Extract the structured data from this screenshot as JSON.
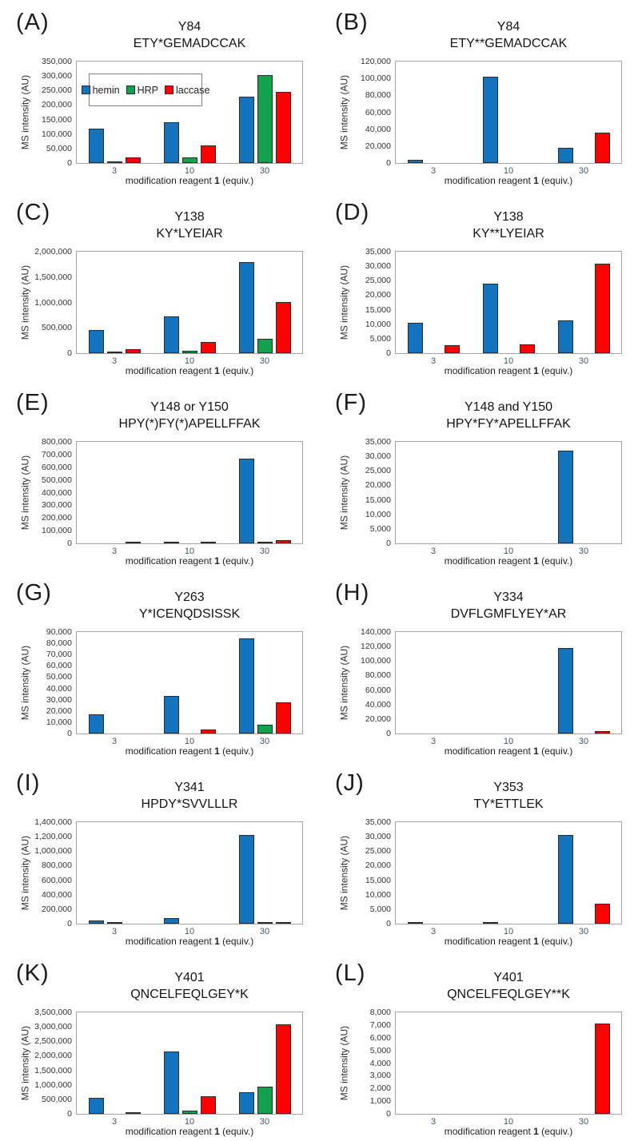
{
  "figure": {
    "xlabel_pre": "modification reagent ",
    "xlabel_bold": "1",
    "xlabel_post": " (equiv.)",
    "legend": [
      "hemin",
      "HRP",
      "laccase"
    ],
    "colors": {
      "hemin": "#1473bd",
      "HRP": "#12a24e",
      "laccase": "#ff0000",
      "bar_outline": "#2b2b2b",
      "plot_border": "#a3a3a3"
    }
  },
  "chart_data": [
    {
      "type": "bar",
      "panel": "(A)",
      "title": "Y84",
      "subtitle": "ETY*GEMADCCAK",
      "ylabel": "MS intensity (AU)",
      "xlabel": "modification reagent 1 (equiv.)",
      "categories": [
        "3",
        "10",
        "30"
      ],
      "ylim": [
        0,
        350000
      ],
      "ytick_step": 50000,
      "yticks": [
        "0",
        "50,000",
        "100,000",
        "150,000",
        "200,000",
        "250,000",
        "300,000",
        "350,000"
      ],
      "legend_visible": true,
      "legend_position": "upper-left",
      "grid": false,
      "series": [
        {
          "name": "hemin",
          "values": [
            118000,
            141000,
            230000
          ]
        },
        {
          "name": "HRP",
          "values": [
            5000,
            18000,
            303000
          ]
        },
        {
          "name": "laccase",
          "values": [
            20000,
            62000,
            246000
          ]
        }
      ]
    },
    {
      "type": "bar",
      "panel": "(B)",
      "title": "Y84",
      "subtitle": "ETY**GEMADCCAK",
      "ylabel": "MS intensity (AU)",
      "xlabel": "modification reagent 1 (equiv.)",
      "categories": [
        "3",
        "10",
        "30"
      ],
      "ylim": [
        0,
        120000
      ],
      "ytick_step": 20000,
      "yticks": [
        "0",
        "20,000",
        "40,000",
        "60,000",
        "80,000",
        "100,000",
        "120,000"
      ],
      "legend_visible": false,
      "grid": false,
      "series": [
        {
          "name": "hemin",
          "values": [
            4000,
            102000,
            18000
          ]
        },
        {
          "name": "HRP",
          "values": [
            0,
            0,
            0
          ]
        },
        {
          "name": "laccase",
          "values": [
            0,
            0,
            36000
          ]
        }
      ]
    },
    {
      "type": "bar",
      "panel": "(C)",
      "title": "Y138",
      "subtitle": "KY*LYEIAR",
      "ylabel": "MS intensity (AU)",
      "xlabel": "modification reagent 1 (equiv.)",
      "categories": [
        "3",
        "10",
        "30"
      ],
      "ylim": [
        0,
        2000000
      ],
      "ytick_step": 500000,
      "yticks": [
        "0",
        "500,000",
        "1,000,000",
        "1,500,000",
        "2,000,000"
      ],
      "legend_visible": false,
      "grid": false,
      "series": [
        {
          "name": "hemin",
          "values": [
            450000,
            730000,
            1800000
          ]
        },
        {
          "name": "HRP",
          "values": [
            15000,
            50000,
            280000
          ]
        },
        {
          "name": "laccase",
          "values": [
            80000,
            215000,
            1000000
          ]
        }
      ]
    },
    {
      "type": "bar",
      "panel": "(D)",
      "title": "Y138",
      "subtitle": "KY**LYEIAR",
      "ylabel": "MS intensity (AU)",
      "xlabel": "modification reagent 1 (equiv.)",
      "categories": [
        "3",
        "10",
        "30"
      ],
      "ylim": [
        0,
        35000
      ],
      "ytick_step": 5000,
      "yticks": [
        "0",
        "5,000",
        "10,000",
        "15,000",
        "20,000",
        "25,000",
        "30,000",
        "35,000"
      ],
      "legend_visible": false,
      "grid": false,
      "series": [
        {
          "name": "hemin",
          "values": [
            10500,
            24000,
            11300
          ]
        },
        {
          "name": "HRP",
          "values": [
            0,
            0,
            0
          ]
        },
        {
          "name": "laccase",
          "values": [
            2800,
            3100,
            31000
          ]
        }
      ]
    },
    {
      "type": "bar",
      "panel": "(E)",
      "title": "Y148 or Y150",
      "subtitle": "HPY(*)FY(*)APELLFFAK",
      "ylabel": "MS intensity (AU)",
      "xlabel": "modification reagent 1 (equiv.)",
      "categories": [
        "3",
        "10",
        "30"
      ],
      "ylim": [
        0,
        800000
      ],
      "ytick_step": 100000,
      "yticks": [
        "0",
        "100,000",
        "200,000",
        "300,000",
        "400,000",
        "500,000",
        "600,000",
        "700,000",
        "800,000"
      ],
      "legend_visible": false,
      "grid": false,
      "series": [
        {
          "name": "hemin",
          "values": [
            0,
            5000,
            670000
          ]
        },
        {
          "name": "HRP",
          "values": [
            0,
            0,
            6000
          ]
        },
        {
          "name": "laccase",
          "values": [
            5000,
            5000,
            25000
          ]
        }
      ]
    },
    {
      "type": "bar",
      "panel": "(F)",
      "title": "Y148 and Y150",
      "subtitle": "HPY*FY*APELLFFAK",
      "ylabel": "MS intensity (AU)",
      "xlabel": "modification reagent 1 (equiv.)",
      "categories": [
        "3",
        "10",
        "30"
      ],
      "ylim": [
        0,
        35000
      ],
      "ytick_step": 5000,
      "yticks": [
        "0",
        "5,000",
        "10,000",
        "15,000",
        "20,000",
        "25,000",
        "30,000",
        "35,000"
      ],
      "legend_visible": false,
      "grid": false,
      "series": [
        {
          "name": "hemin",
          "values": [
            0,
            0,
            32000
          ]
        },
        {
          "name": "HRP",
          "values": [
            0,
            0,
            0
          ]
        },
        {
          "name": "laccase",
          "values": [
            0,
            0,
            0
          ]
        }
      ]
    },
    {
      "type": "bar",
      "panel": "(G)",
      "title": "Y263",
      "subtitle": "Y*ICENQDSISSK",
      "ylabel": "MS intensity (AU)",
      "xlabel": "modification reagent 1 (equiv.)",
      "categories": [
        "3",
        "10",
        "30"
      ],
      "ylim": [
        0,
        90000
      ],
      "ytick_step": 10000,
      "yticks": [
        "0",
        "10,000",
        "20,000",
        "30,000",
        "40,000",
        "50,000",
        "60,000",
        "70,000",
        "80,000",
        "90,000"
      ],
      "legend_visible": false,
      "grid": false,
      "series": [
        {
          "name": "hemin",
          "values": [
            17000,
            33000,
            84000
          ]
        },
        {
          "name": "HRP",
          "values": [
            0,
            0,
            8000
          ]
        },
        {
          "name": "laccase",
          "values": [
            0,
            3500,
            27500
          ]
        }
      ]
    },
    {
      "type": "bar",
      "panel": "(H)",
      "title": "Y334",
      "subtitle": "DVFLGMFLYEY*AR",
      "ylabel": "MS intensity (AU)",
      "xlabel": "modification reagent 1 (equiv.)",
      "categories": [
        "3",
        "10",
        "30"
      ],
      "ylim": [
        0,
        140000
      ],
      "ytick_step": 20000,
      "yticks": [
        "0",
        "20,000",
        "40,000",
        "60,000",
        "80,000",
        "100,000",
        "120,000",
        "140,000"
      ],
      "legend_visible": false,
      "grid": false,
      "series": [
        {
          "name": "hemin",
          "values": [
            0,
            0,
            118000
          ]
        },
        {
          "name": "HRP",
          "values": [
            0,
            0,
            0
          ]
        },
        {
          "name": "laccase",
          "values": [
            0,
            0,
            3000
          ]
        }
      ]
    },
    {
      "type": "bar",
      "panel": "(I)",
      "title": "Y341",
      "subtitle": "HPDY*SVVLLLR",
      "ylabel": "MS intensity (AU)",
      "xlabel": "modification reagent 1 (equiv.)",
      "categories": [
        "3",
        "10",
        "30"
      ],
      "ylim": [
        0,
        1400000
      ],
      "ytick_step": 200000,
      "yticks": [
        "0",
        "200,000",
        "400,000",
        "600,000",
        "800,000",
        "1,000,000",
        "1,200,000",
        "1,400,000"
      ],
      "legend_visible": false,
      "grid": false,
      "series": [
        {
          "name": "hemin",
          "values": [
            45000,
            80000,
            1220000
          ]
        },
        {
          "name": "HRP",
          "values": [
            8000,
            0,
            8000
          ]
        },
        {
          "name": "laccase",
          "values": [
            0,
            0,
            8000
          ]
        }
      ]
    },
    {
      "type": "bar",
      "panel": "(J)",
      "title": "Y353",
      "subtitle": "TY*ETTLEK",
      "ylabel": "MS intensity (AU)",
      "xlabel": "modification reagent 1 (equiv.)",
      "categories": [
        "3",
        "10",
        "30"
      ],
      "ylim": [
        0,
        35000
      ],
      "ytick_step": 5000,
      "yticks": [
        "0",
        "5,000",
        "10,000",
        "15,000",
        "20,000",
        "25,000",
        "30,000",
        "35,000"
      ],
      "legend_visible": false,
      "grid": false,
      "series": [
        {
          "name": "hemin",
          "values": [
            300,
            300,
            30500
          ]
        },
        {
          "name": "HRP",
          "values": [
            0,
            0,
            0
          ]
        },
        {
          "name": "laccase",
          "values": [
            0,
            0,
            7000
          ]
        }
      ]
    },
    {
      "type": "bar",
      "panel": "(K)",
      "title": "Y401",
      "subtitle": "QNCELFEQLGEY*K",
      "ylabel": "MS intensity (AU)",
      "xlabel": "modification reagent 1 (equiv.)",
      "categories": [
        "3",
        "10",
        "30"
      ],
      "ylim": [
        0,
        3500000
      ],
      "ytick_step": 500000,
      "yticks": [
        "0",
        "500,000",
        "1,000,000",
        "1,500,000",
        "2,000,000",
        "2,500,000",
        "3,000,000",
        "3,500,000"
      ],
      "legend_visible": false,
      "grid": false,
      "series": [
        {
          "name": "hemin",
          "values": [
            550000,
            2150000,
            750000
          ]
        },
        {
          "name": "HRP",
          "values": [
            0,
            110000,
            930000
          ]
        },
        {
          "name": "laccase",
          "values": [
            60000,
            600000,
            3100000
          ]
        }
      ]
    },
    {
      "type": "bar",
      "panel": "(L)",
      "title": "Y401",
      "subtitle": "QNCELFEQLGEY**K",
      "ylabel": "MS intensity (AU)",
      "xlabel": "modification reagent 1 (equiv.)",
      "categories": [
        "3",
        "10",
        "30"
      ],
      "ylim": [
        0,
        8000
      ],
      "ytick_step": 1000,
      "yticks": [
        "0",
        "1,000",
        "2,000",
        "3,000",
        "4,000",
        "5,000",
        "6,000",
        "7,000",
        "8,000"
      ],
      "legend_visible": false,
      "grid": false,
      "series": [
        {
          "name": "hemin",
          "values": [
            0,
            0,
            0
          ]
        },
        {
          "name": "HRP",
          "values": [
            0,
            0,
            0
          ]
        },
        {
          "name": "laccase",
          "values": [
            0,
            0,
            7100
          ]
        }
      ]
    }
  ]
}
